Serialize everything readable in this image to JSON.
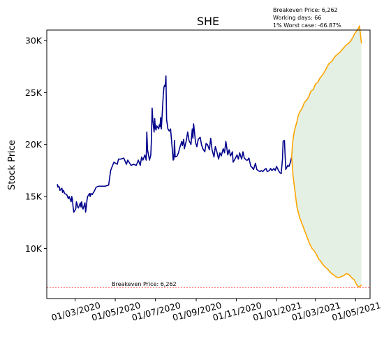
{
  "chart_data": {
    "type": "line",
    "title": "SHE",
    "ylabel": "Stock Price",
    "xlabel": "",
    "ylim": [
      5200,
      31000
    ],
    "xlim": [
      "2020-01-18",
      "2021-05-23"
    ],
    "yticks": [
      10000,
      15000,
      20000,
      25000,
      30000
    ],
    "ytick_labels": [
      "10K",
      "15K",
      "20K",
      "25K",
      "30K"
    ],
    "xticks": [
      "2020-03-01",
      "2020-05-01",
      "2020-07-01",
      "2020-09-01",
      "2020-11-01",
      "2021-01-01",
      "2021-03-01",
      "2021-05-01"
    ],
    "xtick_labels": [
      "01/03/2020",
      "01/05/2020",
      "01/07/2020",
      "01/09/2020",
      "01/11/2020",
      "01/01/2021",
      "01/03/2021",
      "01/05/2021"
    ],
    "annotations": {
      "breakeven_label": "Breakeven Price: 6,262",
      "info_line1": "Breakeven Price: 6,262",
      "info_line2": "Working days: 66",
      "info_line3": "1% Worst case: -66.87%"
    },
    "breakeven_price": 6262,
    "colors": {
      "history": "#00008b",
      "projection": "#ffa500",
      "band": "#2e8b2e",
      "breakeven": "#ff0000"
    },
    "series": [
      {
        "type": "history",
        "points": [
          [
            "2020-02-03",
            16200
          ],
          [
            "2020-02-04",
            15900
          ],
          [
            "2020-02-05",
            16000
          ],
          [
            "2020-02-06",
            15900
          ],
          [
            "2020-02-07",
            15600
          ],
          [
            "2020-02-10",
            15800
          ],
          [
            "2020-02-11",
            15400
          ],
          [
            "2020-02-12",
            15600
          ],
          [
            "2020-02-13",
            15500
          ],
          [
            "2020-02-14",
            15300
          ],
          [
            "2020-02-17",
            15200
          ],
          [
            "2020-02-18",
            15100
          ],
          [
            "2020-02-19",
            14900
          ],
          [
            "2020-02-20",
            14800
          ],
          [
            "2020-02-21",
            15000
          ],
          [
            "2020-02-24",
            14500
          ],
          [
            "2020-02-25",
            15000
          ],
          [
            "2020-02-26",
            14700
          ],
          [
            "2020-02-27",
            14000
          ],
          [
            "2020-02-28",
            13500
          ],
          [
            "2020-03-02",
            13800
          ],
          [
            "2020-03-03",
            14500
          ],
          [
            "2020-03-04",
            14300
          ],
          [
            "2020-03-05",
            14000
          ],
          [
            "2020-03-06",
            13900
          ],
          [
            "2020-03-09",
            14400
          ],
          [
            "2020-03-10",
            14000
          ],
          [
            "2020-03-11",
            14500
          ],
          [
            "2020-03-12",
            14000
          ],
          [
            "2020-03-13",
            13800
          ],
          [
            "2020-03-16",
            14400
          ],
          [
            "2020-03-17",
            13500
          ],
          [
            "2020-03-18",
            14000
          ],
          [
            "2020-03-19",
            14600
          ],
          [
            "2020-03-20",
            15000
          ],
          [
            "2020-03-23",
            15300
          ],
          [
            "2020-03-24",
            15000
          ],
          [
            "2020-03-25",
            15300
          ],
          [
            "2020-03-27",
            15200
          ],
          [
            "2020-03-30",
            15500
          ],
          [
            "2020-04-02",
            15900
          ],
          [
            "2020-04-06",
            16000
          ],
          [
            "2020-04-10",
            16000
          ],
          [
            "2020-04-16",
            16000
          ],
          [
            "2020-04-21",
            16100
          ],
          [
            "2020-04-24",
            17500
          ],
          [
            "2020-04-27",
            18000
          ],
          [
            "2020-04-29",
            18300
          ],
          [
            "2020-05-04",
            18100
          ],
          [
            "2020-05-06",
            18600
          ],
          [
            "2020-05-09",
            18600
          ],
          [
            "2020-05-14",
            18700
          ],
          [
            "2020-05-18",
            18100
          ],
          [
            "2020-05-20",
            18500
          ],
          [
            "2020-05-25",
            18000
          ],
          [
            "2020-05-29",
            18100
          ],
          [
            "2020-06-02",
            18000
          ],
          [
            "2020-06-05",
            18500
          ],
          [
            "2020-06-08",
            18000
          ],
          [
            "2020-06-10",
            18800
          ],
          [
            "2020-06-12",
            18500
          ],
          [
            "2020-06-15",
            19000
          ],
          [
            "2020-06-17",
            18500
          ],
          [
            "2020-06-18",
            21200
          ],
          [
            "2020-06-19",
            19500
          ],
          [
            "2020-06-22",
            18500
          ],
          [
            "2020-06-24",
            19000
          ],
          [
            "2020-06-25",
            20500
          ],
          [
            "2020-06-26",
            23500
          ],
          [
            "2020-06-27",
            22400
          ],
          [
            "2020-06-29",
            21200
          ],
          [
            "2020-06-30",
            22500
          ],
          [
            "2020-07-01",
            21500
          ],
          [
            "2020-07-02",
            21400
          ],
          [
            "2020-07-03",
            21800
          ],
          [
            "2020-07-06",
            21500
          ],
          [
            "2020-07-07",
            21900
          ],
          [
            "2020-07-08",
            21700
          ],
          [
            "2020-07-09",
            22600
          ],
          [
            "2020-07-10",
            21500
          ],
          [
            "2020-07-13",
            24800
          ],
          [
            "2020-07-14",
            25500
          ],
          [
            "2020-07-15",
            25700
          ],
          [
            "2020-07-16",
            25600
          ],
          [
            "2020-07-17",
            26600
          ],
          [
            "2020-07-18",
            22400
          ],
          [
            "2020-07-20",
            21500
          ],
          [
            "2020-07-22",
            21300
          ],
          [
            "2020-07-24",
            21500
          ],
          [
            "2020-07-28",
            18500
          ],
          [
            "2020-07-29",
            18600
          ],
          [
            "2020-07-30",
            20400
          ],
          [
            "2020-07-31",
            18800
          ],
          [
            "2020-08-03",
            18900
          ],
          [
            "2020-08-05",
            19200
          ],
          [
            "2020-08-07",
            19700
          ],
          [
            "2020-08-10",
            20300
          ],
          [
            "2020-08-11",
            19900
          ],
          [
            "2020-08-13",
            20500
          ],
          [
            "2020-08-14",
            19600
          ],
          [
            "2020-08-17",
            20400
          ],
          [
            "2020-08-19",
            21200
          ],
          [
            "2020-08-21",
            20400
          ],
          [
            "2020-08-24",
            20000
          ],
          [
            "2020-08-26",
            21500
          ],
          [
            "2020-08-27",
            20600
          ],
          [
            "2020-08-28",
            22000
          ],
          [
            "2020-08-31",
            20200
          ],
          [
            "2020-09-02",
            19800
          ],
          [
            "2020-09-04",
            20500
          ],
          [
            "2020-09-07",
            20700
          ],
          [
            "2020-09-09",
            20000
          ],
          [
            "2020-09-11",
            19600
          ],
          [
            "2020-09-14",
            19300
          ],
          [
            "2020-09-16",
            20100
          ],
          [
            "2020-09-18",
            20000
          ],
          [
            "2020-09-21",
            19500
          ],
          [
            "2020-09-23",
            20600
          ],
          [
            "2020-09-25",
            19500
          ],
          [
            "2020-09-28",
            18800
          ],
          [
            "2020-09-30",
            19800
          ],
          [
            "2020-10-02",
            19400
          ],
          [
            "2020-10-05",
            18600
          ],
          [
            "2020-10-07",
            19200
          ],
          [
            "2020-10-09",
            18900
          ],
          [
            "2020-10-12",
            19600
          ],
          [
            "2020-10-14",
            19200
          ],
          [
            "2020-10-16",
            20300
          ],
          [
            "2020-10-19",
            19000
          ],
          [
            "2020-10-21",
            19500
          ],
          [
            "2020-10-23",
            18900
          ],
          [
            "2020-10-26",
            19300
          ],
          [
            "2020-10-27",
            18300
          ],
          [
            "2020-10-29",
            18500
          ],
          [
            "2020-11-02",
            19000
          ],
          [
            "2020-11-04",
            18600
          ],
          [
            "2020-11-06",
            19200
          ],
          [
            "2020-11-09",
            18600
          ],
          [
            "2020-11-11",
            19300
          ],
          [
            "2020-11-13",
            18700
          ],
          [
            "2020-11-16",
            18500
          ],
          [
            "2020-11-18",
            18500
          ],
          [
            "2020-11-20",
            18700
          ],
          [
            "2020-11-23",
            17900
          ],
          [
            "2020-11-25",
            17800
          ],
          [
            "2020-11-27",
            17600
          ],
          [
            "2020-11-30",
            18200
          ],
          [
            "2020-12-02",
            17600
          ],
          [
            "2020-12-04",
            17500
          ],
          [
            "2020-12-07",
            17400
          ],
          [
            "2020-12-09",
            17500
          ],
          [
            "2020-12-11",
            17400
          ],
          [
            "2020-12-14",
            17600
          ],
          [
            "2020-12-16",
            17700
          ],
          [
            "2020-12-18",
            17400
          ],
          [
            "2020-12-21",
            17500
          ],
          [
            "2020-12-23",
            17700
          ],
          [
            "2020-12-25",
            17500
          ],
          [
            "2020-12-28",
            17700
          ],
          [
            "2020-12-30",
            17500
          ],
          [
            "2021-01-01",
            17900
          ],
          [
            "2021-01-04",
            17500
          ],
          [
            "2021-01-06",
            17300
          ],
          [
            "2021-01-08",
            17200
          ],
          [
            "2021-01-10",
            18600
          ],
          [
            "2021-01-11",
            20300
          ],
          [
            "2021-01-13",
            20400
          ],
          [
            "2021-01-15",
            17600
          ],
          [
            "2021-01-18",
            18000
          ],
          [
            "2021-01-20",
            17900
          ],
          [
            "2021-01-22",
            18300
          ],
          [
            "2021-01-24",
            18800
          ]
        ]
      },
      {
        "type": "projection_upper",
        "points": [
          [
            "2021-01-24",
            18800
          ],
          [
            "2021-01-25",
            19800
          ],
          [
            "2021-01-26",
            20500
          ],
          [
            "2021-01-28",
            21300
          ],
          [
            "2021-02-01",
            22200
          ],
          [
            "2021-02-03",
            22800
          ],
          [
            "2021-02-06",
            23200
          ],
          [
            "2021-02-09",
            23500
          ],
          [
            "2021-02-12",
            24000
          ],
          [
            "2021-02-16",
            24300
          ],
          [
            "2021-02-19",
            24600
          ],
          [
            "2021-02-22",
            25100
          ],
          [
            "2021-02-26",
            25300
          ],
          [
            "2021-03-01",
            25800
          ],
          [
            "2021-03-05",
            26000
          ],
          [
            "2021-03-08",
            26400
          ],
          [
            "2021-03-12",
            26700
          ],
          [
            "2021-03-15",
            27000
          ],
          [
            "2021-03-19",
            27500
          ],
          [
            "2021-03-22",
            27800
          ],
          [
            "2021-03-26",
            28000
          ],
          [
            "2021-03-29",
            28300
          ],
          [
            "2021-04-02",
            28600
          ],
          [
            "2021-04-06",
            28800
          ],
          [
            "2021-04-09",
            29000
          ],
          [
            "2021-04-13",
            29300
          ],
          [
            "2021-04-16",
            29500
          ],
          [
            "2021-04-20",
            29700
          ],
          [
            "2021-04-23",
            29900
          ],
          [
            "2021-04-27",
            30300
          ],
          [
            "2021-04-30",
            30700
          ],
          [
            "2021-05-04",
            31000
          ],
          [
            "2021-05-07",
            31400
          ],
          [
            "2021-05-10",
            29700
          ]
        ]
      },
      {
        "type": "projection_lower",
        "points": [
          [
            "2021-01-24",
            18800
          ],
          [
            "2021-01-25",
            18000
          ],
          [
            "2021-01-26",
            17000
          ],
          [
            "2021-01-28",
            16000
          ],
          [
            "2021-01-30",
            15000
          ],
          [
            "2021-02-01",
            14000
          ],
          [
            "2021-02-03",
            13500
          ],
          [
            "2021-02-05",
            13000
          ],
          [
            "2021-02-08",
            12500
          ],
          [
            "2021-02-11",
            12000
          ],
          [
            "2021-02-14",
            11500
          ],
          [
            "2021-02-17",
            11000
          ],
          [
            "2021-02-20",
            10500
          ],
          [
            "2021-02-24",
            10000
          ],
          [
            "2021-02-27",
            9800
          ],
          [
            "2021-03-02",
            9500
          ],
          [
            "2021-03-06",
            9000
          ],
          [
            "2021-03-09",
            8800
          ],
          [
            "2021-03-12",
            8500
          ],
          [
            "2021-03-16",
            8200
          ],
          [
            "2021-03-20",
            8000
          ],
          [
            "2021-03-24",
            7700
          ],
          [
            "2021-03-28",
            7500
          ],
          [
            "2021-04-01",
            7300
          ],
          [
            "2021-04-05",
            7200
          ],
          [
            "2021-04-09",
            7300
          ],
          [
            "2021-04-13",
            7400
          ],
          [
            "2021-04-17",
            7600
          ],
          [
            "2021-04-21",
            7500
          ],
          [
            "2021-04-25",
            7200
          ],
          [
            "2021-04-29",
            7000
          ],
          [
            "2021-05-03",
            6500
          ],
          [
            "2021-05-06",
            6300
          ],
          [
            "2021-05-10",
            6500
          ]
        ]
      }
    ]
  }
}
